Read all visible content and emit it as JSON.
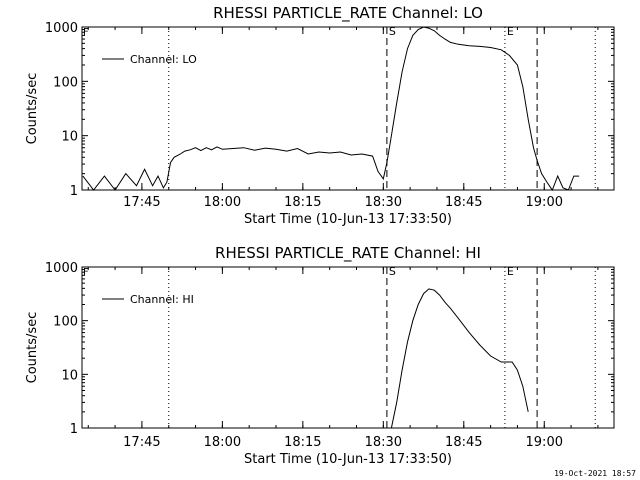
{
  "footer": {
    "timestamp": "19-Oct-2021 18:57"
  },
  "chart_data": [
    {
      "type": "line",
      "title": "RHESSI PARTICLE_RATE Channel: LO",
      "xlabel": "Start Time (10-Jun-13 17:33:50)",
      "ylabel": "Counts/sec",
      "yscale": "log",
      "ylim": [
        1,
        1000
      ],
      "xlim": [
        "17:33:50",
        "19:13:00"
      ],
      "x_ticks": [
        "17:45",
        "18:00",
        "18:15",
        "18:30",
        "18:45",
        "19:00"
      ],
      "y_ticks": [
        "1",
        "10",
        "100",
        "1000"
      ],
      "legend": "top-left",
      "markers": [
        {
          "time": "17:50:00",
          "style": "dotted",
          "label": ""
        },
        {
          "time": "18:30:40",
          "style": "dashed",
          "label": "S"
        },
        {
          "time": "18:52:40",
          "style": "dotted",
          "label": "E"
        },
        {
          "time": "18:58:40",
          "style": "dashed",
          "label": ""
        },
        {
          "time": "19:09:30",
          "style": "dotted",
          "label": ""
        }
      ],
      "series": [
        {
          "name": "Channel: LO",
          "x": [
            "17:34:00",
            "17:36:00",
            "17:38:00",
            "17:40:00",
            "17:42:00",
            "17:44:00",
            "17:45:30",
            "17:47:00",
            "17:48:00",
            "17:49:00",
            "17:49:40",
            "17:50:20",
            "17:51:00",
            "17:52:00",
            "17:53:00",
            "17:54:00",
            "17:55:00",
            "17:56:00",
            "17:57:00",
            "17:58:00",
            "17:59:00",
            "18:00:00",
            "18:02:00",
            "18:04:00",
            "18:06:00",
            "18:08:00",
            "18:10:00",
            "18:12:00",
            "18:14:00",
            "18:16:00",
            "18:18:00",
            "18:20:00",
            "18:22:00",
            "18:24:00",
            "18:26:00",
            "18:28:00",
            "18:29:00",
            "18:30:00",
            "18:30:40",
            "18:31:30",
            "18:32:30",
            "18:33:30",
            "18:34:30",
            "18:35:30",
            "18:36:30",
            "18:37:30",
            "18:38:30",
            "18:39:30",
            "18:40:30",
            "18:41:30",
            "18:42:30",
            "18:44:00",
            "18:46:00",
            "18:48:00",
            "18:50:00",
            "18:52:00",
            "18:53:30",
            "18:55:00",
            "18:56:00",
            "18:57:00",
            "18:58:00",
            "18:58:40",
            "18:59:30",
            "19:00:30",
            "19:01:30",
            "19:02:30",
            "19:03:30",
            "19:04:30",
            "19:05:30",
            "19:06:30"
          ],
          "y": [
            1.8,
            1.0,
            1.8,
            1.0,
            2.0,
            1.2,
            2.4,
            1.2,
            1.8,
            1.1,
            1.4,
            3.2,
            4.0,
            4.5,
            5.2,
            5.5,
            6.0,
            5.3,
            6.0,
            5.5,
            6.2,
            5.6,
            5.8,
            6.0,
            5.4,
            5.9,
            5.6,
            5.2,
            5.8,
            4.6,
            5.0,
            4.8,
            5.0,
            4.4,
            4.6,
            4.2,
            2.2,
            1.6,
            3.2,
            10,
            40,
            150,
            400,
            700,
            900,
            1000,
            950,
            850,
            700,
            600,
            520,
            480,
            450,
            440,
            420,
            380,
            300,
            200,
            80,
            20,
            6,
            3.5,
            2.0,
            1.4,
            1.0,
            1.8,
            1.1,
            1.0,
            1.8,
            1.8
          ]
        }
      ]
    },
    {
      "type": "line",
      "title": "RHESSI PARTICLE_RATE Channel: HI",
      "xlabel": "Start Time (10-Jun-13 17:33:50)",
      "ylabel": "Counts/sec",
      "yscale": "log",
      "ylim": [
        1,
        1000
      ],
      "xlim": [
        "17:33:50",
        "19:13:00"
      ],
      "x_ticks": [
        "17:45",
        "18:00",
        "18:15",
        "18:30",
        "18:45",
        "19:00"
      ],
      "y_ticks": [
        "1",
        "10",
        "100",
        "1000"
      ],
      "legend": "top-left",
      "markers": [
        {
          "time": "17:50:00",
          "style": "dotted",
          "label": ""
        },
        {
          "time": "18:30:40",
          "style": "dashed",
          "label": "S"
        },
        {
          "time": "18:52:40",
          "style": "dotted",
          "label": "E"
        },
        {
          "time": "18:58:40",
          "style": "dashed",
          "label": ""
        },
        {
          "time": "19:09:30",
          "style": "dotted",
          "label": ""
        }
      ],
      "series": [
        {
          "name": "Channel: HI",
          "x": [
            "18:31:30",
            "18:32:30",
            "18:33:30",
            "18:34:30",
            "18:35:30",
            "18:36:30",
            "18:37:30",
            "18:38:30",
            "18:39:30",
            "18:40:30",
            "18:41:30",
            "18:42:30",
            "18:44:00",
            "18:46:00",
            "18:48:00",
            "18:50:00",
            "18:52:00",
            "18:54:00",
            "18:55:00",
            "18:56:00",
            "18:57:00"
          ],
          "y": [
            1.0,
            3,
            12,
            40,
            100,
            200,
            320,
            390,
            370,
            300,
            220,
            170,
            110,
            60,
            35,
            22,
            17,
            17,
            12,
            6,
            2
          ]
        }
      ]
    }
  ]
}
